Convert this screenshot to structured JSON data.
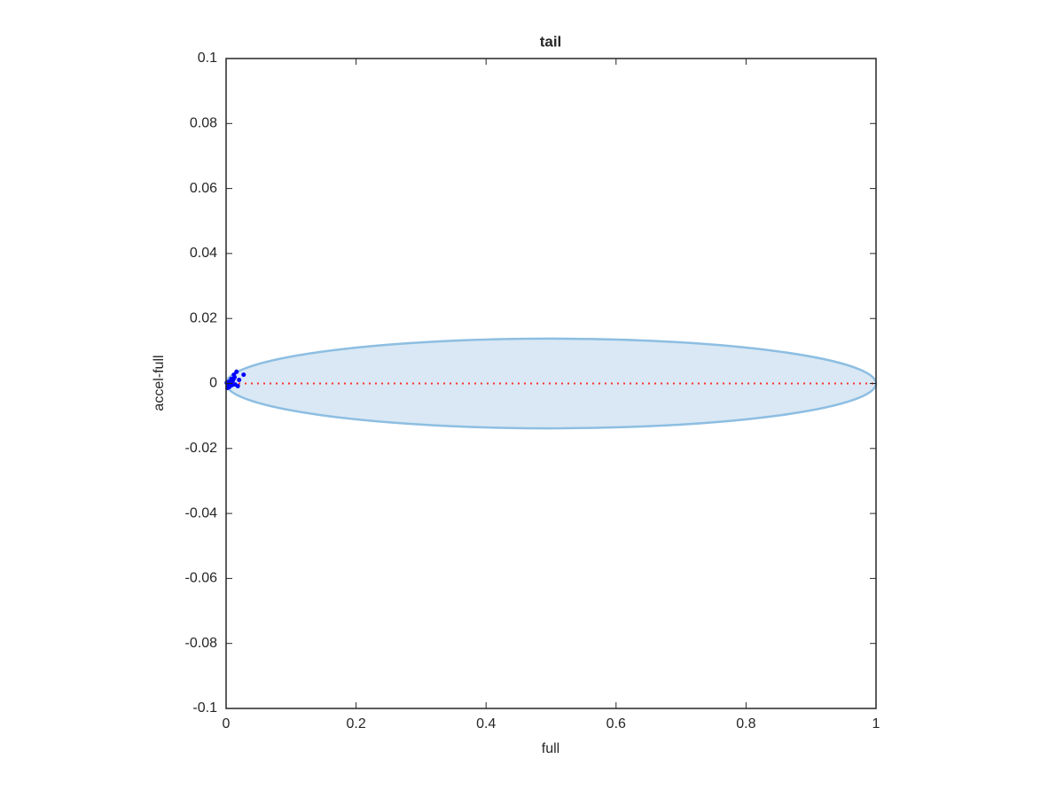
{
  "chart_data": {
    "type": "scatter",
    "title": "tail",
    "xlabel": "full",
    "ylabel": "accel-full",
    "x": [
      0.027,
      0.02,
      0.016,
      0.013,
      0.012,
      0.01,
      0.008,
      0.006,
      0.004,
      0.003,
      0.002,
      0.005,
      0.009,
      0.014,
      0.001,
      0.007,
      0.011,
      0.018
    ],
    "values": [
      0.0027,
      0.0011,
      0.0036,
      0.0019,
      0.0027,
      0.0008,
      0.0014,
      0.0003,
      0.0005,
      -0.0008,
      -0.0014,
      -0.0011,
      -0.0005,
      -0.0003,
      0.0002,
      -0.0002,
      0.0012,
      -0.0008
    ],
    "color": "#0000ff",
    "ellipse": {
      "center": [
        0.5,
        0
      ],
      "radii": [
        0.5,
        0.0138
      ],
      "fill": "#d9e8f4",
      "stroke": "#8dbee2"
    },
    "reference_line": {
      "y": 0,
      "x": [
        0,
        1
      ],
      "color": "#ff3030"
    },
    "xlim": [
      0,
      1
    ],
    "ylim": [
      -0.1,
      0.1
    ],
    "xticks": [
      0,
      0.2,
      0.4,
      0.6,
      0.8,
      1
    ],
    "yticks": [
      -0.1,
      -0.08,
      -0.06,
      -0.04,
      -0.02,
      0,
      0.02,
      0.04,
      0.06,
      0.08,
      0.1
    ]
  }
}
